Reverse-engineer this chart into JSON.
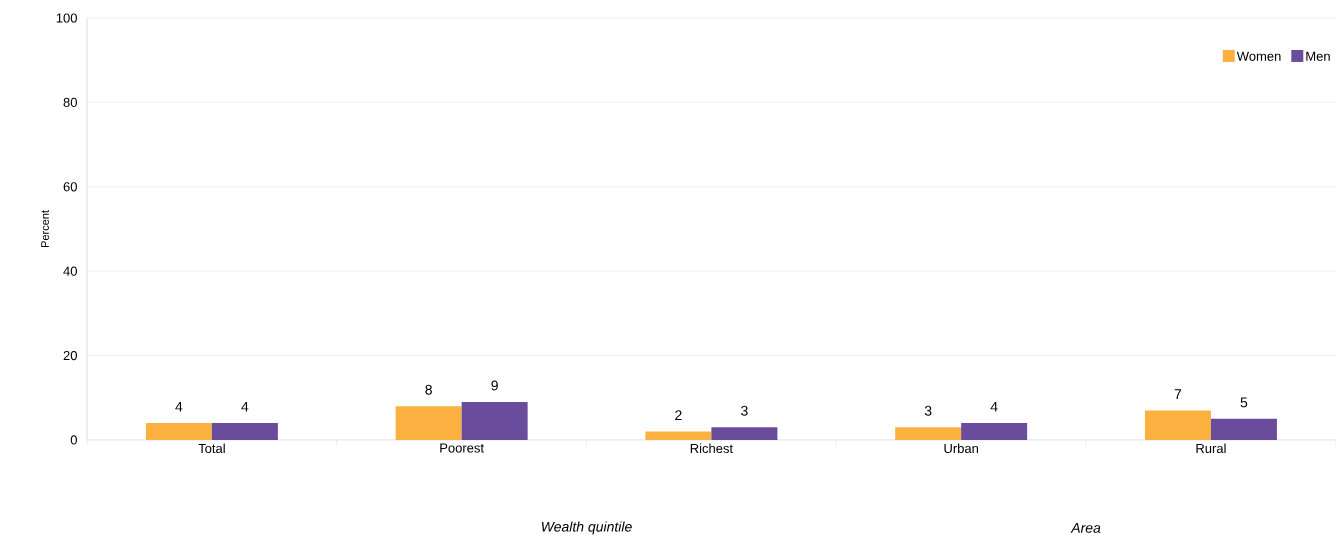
{
  "chart_data": {
    "type": "bar",
    "ylabel": "Percent",
    "categories": [
      "Total",
      "Poorest",
      "Richest",
      "Urban",
      "Rural"
    ],
    "series": [
      {
        "name": "Women",
        "color": "#fbb040",
        "values": [
          4,
          8,
          2,
          3,
          7
        ]
      },
      {
        "name": "Men",
        "color": "#6a4c9c",
        "values": [
          4,
          9,
          3,
          4,
          5
        ]
      }
    ],
    "ylim": [
      0,
      100
    ],
    "yticks": [
      0,
      20,
      40,
      60,
      80,
      100
    ],
    "grid": "y",
    "legend": "top right",
    "data_labels": true,
    "annotations": [
      "Wealth quintile",
      "Area"
    ]
  }
}
